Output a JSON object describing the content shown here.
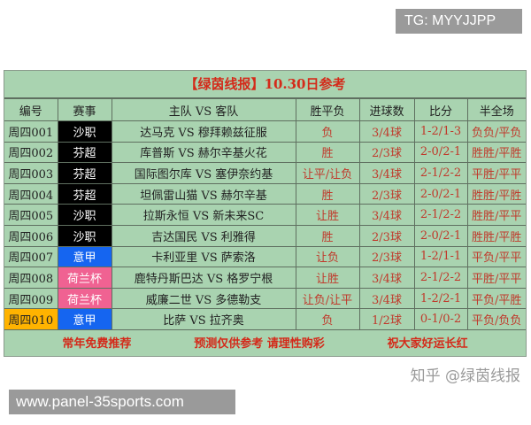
{
  "tg_label": "TG: MYYJJPP",
  "watermark_bottom": "www.panel-35sports.com",
  "title": "【绿茵线报】10.30日参考",
  "headers": [
    "编号",
    "赛事",
    "主队 VS 客队",
    "胜平负",
    "进球数",
    "比分",
    "半全场"
  ],
  "rows": [
    {
      "id": "周四001",
      "league": "沙职",
      "league_color": "#000000",
      "match": "达马克 VS 穆拜赖兹征服",
      "result": "负",
      "goals": "3/4球",
      "score": "1-2/1-3",
      "htft": "负负/平负"
    },
    {
      "id": "周四002",
      "league": "芬超",
      "league_color": "#000000",
      "match": "库普斯 VS 赫尔辛基火花",
      "result": "胜",
      "goals": "2/3球",
      "score": "2-0/2-1",
      "htft": "胜胜/平胜"
    },
    {
      "id": "周四003",
      "league": "芬超",
      "league_color": "#000000",
      "match": "国际图尔库 VS 塞伊奈约基",
      "result": "让平/让负",
      "goals": "3/4球",
      "score": "2-1/2-2",
      "htft": "平胜/平平"
    },
    {
      "id": "周四004",
      "league": "芬超",
      "league_color": "#000000",
      "match": "坦佩雷山猫 VS 赫尔辛基",
      "result": "胜",
      "goals": "2/3球",
      "score": "2-0/2-1",
      "htft": "胜胜/平胜"
    },
    {
      "id": "周四005",
      "league": "沙职",
      "league_color": "#000000",
      "match": "拉斯永恒 VS 新未来SC",
      "result": "让胜",
      "goals": "3/4球",
      "score": "2-1/2-2",
      "htft": "胜胜/平平"
    },
    {
      "id": "周四006",
      "league": "沙职",
      "league_color": "#000000",
      "match": "吉达国民 VS 利雅得",
      "result": "胜",
      "goals": "2/3球",
      "score": "2-0/2-1",
      "htft": "胜胜/平胜"
    },
    {
      "id": "周四007",
      "league": "意甲",
      "league_color": "#1565f0",
      "match": "卡利亚里 VS 萨索洛",
      "result": "让负",
      "goals": "2/3球",
      "score": "1-2/1-1",
      "htft": "平负/平平"
    },
    {
      "id": "周四008",
      "league": "荷兰杯",
      "league_color": "#f06292",
      "match": "鹿特丹斯巴达 VS 格罗宁根",
      "result": "让胜",
      "goals": "3/4球",
      "score": "2-1/2-2",
      "htft": "平胜/平平"
    },
    {
      "id": "周四009",
      "league": "荷兰杯",
      "league_color": "#f06292",
      "match": "威廉二世 VS 多德勒支",
      "result": "让负/让平",
      "goals": "3/4球",
      "score": "1-2/2-1",
      "htft": "平负/平胜"
    },
    {
      "id": "周四010",
      "id_color": "#ffb300",
      "league": "意甲",
      "league_color": "#1565f0",
      "match": "比萨 VS 拉齐奥",
      "result": "负",
      "goals": "1/2球",
      "score": "0-1/0-2",
      "htft": "平负/负负"
    }
  ],
  "footer": [
    "常年免费推荐",
    "预测仅供参考  请理性购彩",
    "祝大家好运长红"
  ],
  "zhihu_watermark": "知乎 @绿茵线报"
}
